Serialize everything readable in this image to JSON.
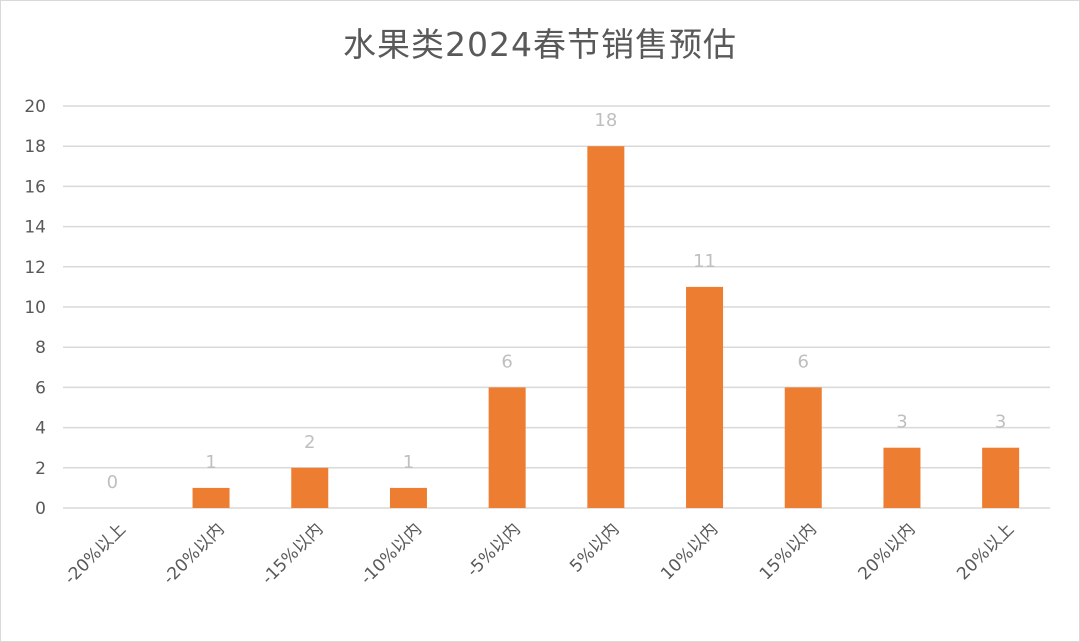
{
  "chart_data": {
    "type": "bar",
    "title": "水果类2024春节销售预估",
    "categories": [
      "-20%以上",
      "-20%以内",
      "-15%以内",
      "-10%以内",
      "-5%以内",
      "5%以内",
      "10%以内",
      "15%以内",
      "20%以内",
      "20%以上"
    ],
    "values": [
      0,
      1,
      2,
      1,
      6,
      18,
      11,
      6,
      3,
      3
    ],
    "xlabel": "",
    "ylabel": "",
    "ylim": [
      0,
      20
    ],
    "yticks": [
      0,
      2,
      4,
      6,
      8,
      10,
      12,
      14,
      16,
      18,
      20
    ],
    "grid": true,
    "legend": "none",
    "colors": {
      "bar": "#ed7d31",
      "grid": "#d9d9d9",
      "data_label": "#bfbfbf",
      "axis_text": "#595959"
    }
  }
}
